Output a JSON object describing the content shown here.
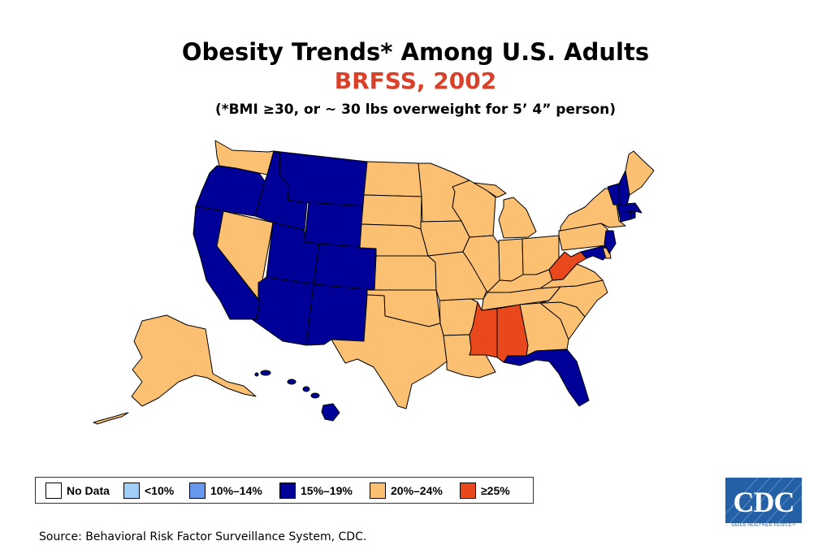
{
  "title": "Obesity Trends* Among U.S. Adults",
  "subtitle": "BRFSS, 2002",
  "note": "(*BMI ≥30, or ~ 30 lbs overweight for 5’ 4” person)",
  "legend": [
    {
      "label": "No Data",
      "color": "#ffffff"
    },
    {
      "label": "<10%",
      "color": "#9fcff7"
    },
    {
      "label": "10%–14%",
      "color": "#6699ee"
    },
    {
      "label": "15%–19%",
      "color": "#000099"
    },
    {
      "label": "20%–24%",
      "color": "#fcc073"
    },
    {
      "label": "≥25%",
      "color": "#e8481c"
    }
  ],
  "source": "Source: Behavioral Risk Factor Surveillance System, CDC.",
  "logo": {
    "text": "CDC",
    "tagline": "SAFER·HEALTHIER·PEOPLE™"
  },
  "states": {
    "WA": "20%–24%",
    "OR": "15%–19%",
    "CA": "15%–19%",
    "NV": "20%–24%",
    "ID": "15%–19%",
    "MT": "15%–19%",
    "WY": "15%–19%",
    "UT": "15%–19%",
    "CO": "15%–19%",
    "AZ": "15%–19%",
    "NM": "15%–19%",
    "ND": "20%–24%",
    "SD": "20%–24%",
    "NE": "20%–24%",
    "KS": "20%–24%",
    "OK": "20%–24%",
    "TX": "20%–24%",
    "MN": "20%–24%",
    "IA": "20%–24%",
    "MO": "20%–24%",
    "AR": "20%–24%",
    "LA": "20%–24%",
    "WI": "20%–24%",
    "IL": "20%–24%",
    "MI": "20%–24%",
    "IN": "20%–24%",
    "OH": "20%–24%",
    "KY": "20%–24%",
    "TN": "20%–24%",
    "MS": "≥25%",
    "AL": "≥25%",
    "GA": "20%–24%",
    "FL": "15%–19%",
    "SC": "20%–24%",
    "NC": "20%–24%",
    "VA": "20%–24%",
    "WV": "≥25%",
    "PA": "20%–24%",
    "NY": "20%–24%",
    "MD": "15%–19%",
    "DE": "20%–24%",
    "NJ": "15%–19%",
    "CT": "15%–19%",
    "RI": "15%–19%",
    "MA": "15%–19%",
    "VT": "15%–19%",
    "NH": "15%–19%",
    "ME": "20%–24%",
    "AK": "20%–24%",
    "HI": "15%–19%"
  }
}
